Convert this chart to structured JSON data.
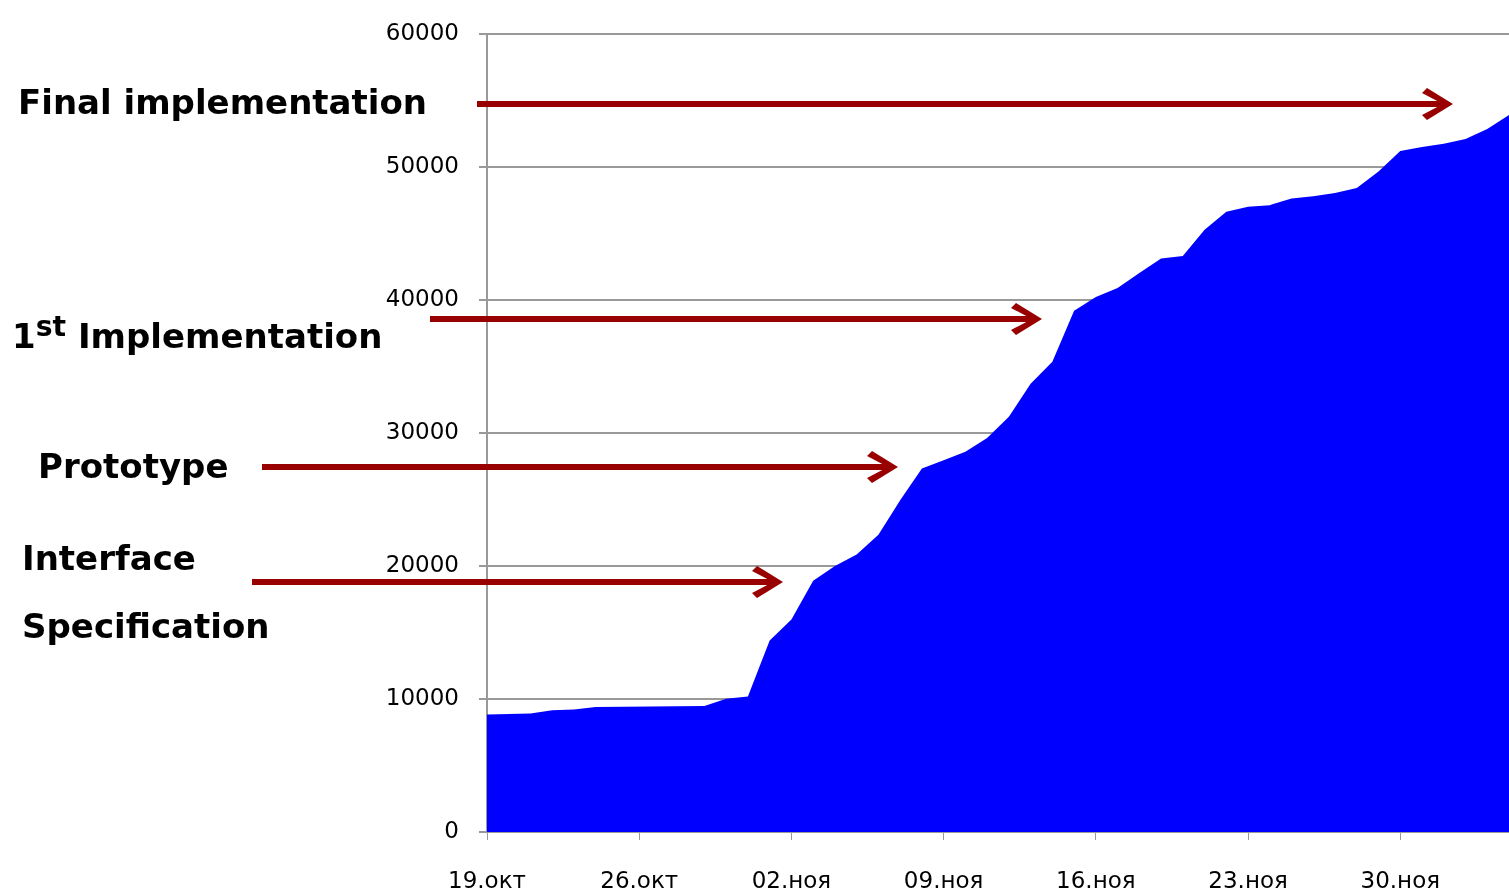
{
  "chart_data": {
    "type": "area",
    "x": [
      "--10-19",
      "--10-21",
      "--10-22",
      "--10-23",
      "--10-24",
      "--10-29",
      "--10-30",
      "--10-31",
      "--11-01",
      "--11-02",
      "--11-03",
      "--11-04",
      "--11-05",
      "--11-06",
      "--11-07",
      "--11-08",
      "--11-09",
      "--11-10",
      "--11-11",
      "--11-12",
      "--11-13",
      "--11-14",
      "--11-15",
      "--11-16",
      "--11-17",
      "--11-18",
      "--11-19",
      "--11-20",
      "--11-21",
      "--11-22",
      "--11-23",
      "--11-24",
      "--11-25",
      "--11-26",
      "--11-27",
      "--11-28",
      "--11-29",
      "--11-30",
      "--12-01",
      "--12-02",
      "--12-03",
      "--12-04",
      "--12-05"
    ],
    "series": [
      {
        "color": "#0000ff",
        "values": [
          8830,
          8900,
          9150,
          9200,
          9400,
          9470,
          10010,
          10190,
          14400,
          15980,
          18890,
          20000,
          20860,
          22340,
          24930,
          27320,
          27950,
          28580,
          29620,
          31220,
          33690,
          35340,
          39190,
          40220,
          40890,
          42020,
          43110,
          43300,
          45280,
          46630,
          47000,
          47120,
          47620,
          47790,
          48040,
          48400,
          49640,
          51190,
          51490,
          51730,
          52100,
          52840,
          53900
        ]
      }
    ],
    "xlim": [
      "--10-19",
      "--12-05"
    ],
    "xticks": [
      {
        "value": "--10-19",
        "label": "19.окт"
      },
      {
        "value": "--10-26",
        "label": "26.окт"
      },
      {
        "value": "--11-02",
        "label": "02.ноя"
      },
      {
        "value": "--11-09",
        "label": "09.ноя"
      },
      {
        "value": "--11-16",
        "label": "16.ноя"
      },
      {
        "value": "--11-23",
        "label": "23.ноя"
      },
      {
        "value": "--11-30",
        "label": "30.ноя"
      }
    ],
    "ylim": [
      0,
      60000
    ],
    "yticks": [
      0,
      10000,
      20000,
      30000,
      40000,
      50000,
      60000
    ],
    "grid": "y",
    "annotations": [
      "Final implementation",
      "1$^{st}$ Implementation",
      "Prototype",
      "Interface Specification"
    ]
  }
}
